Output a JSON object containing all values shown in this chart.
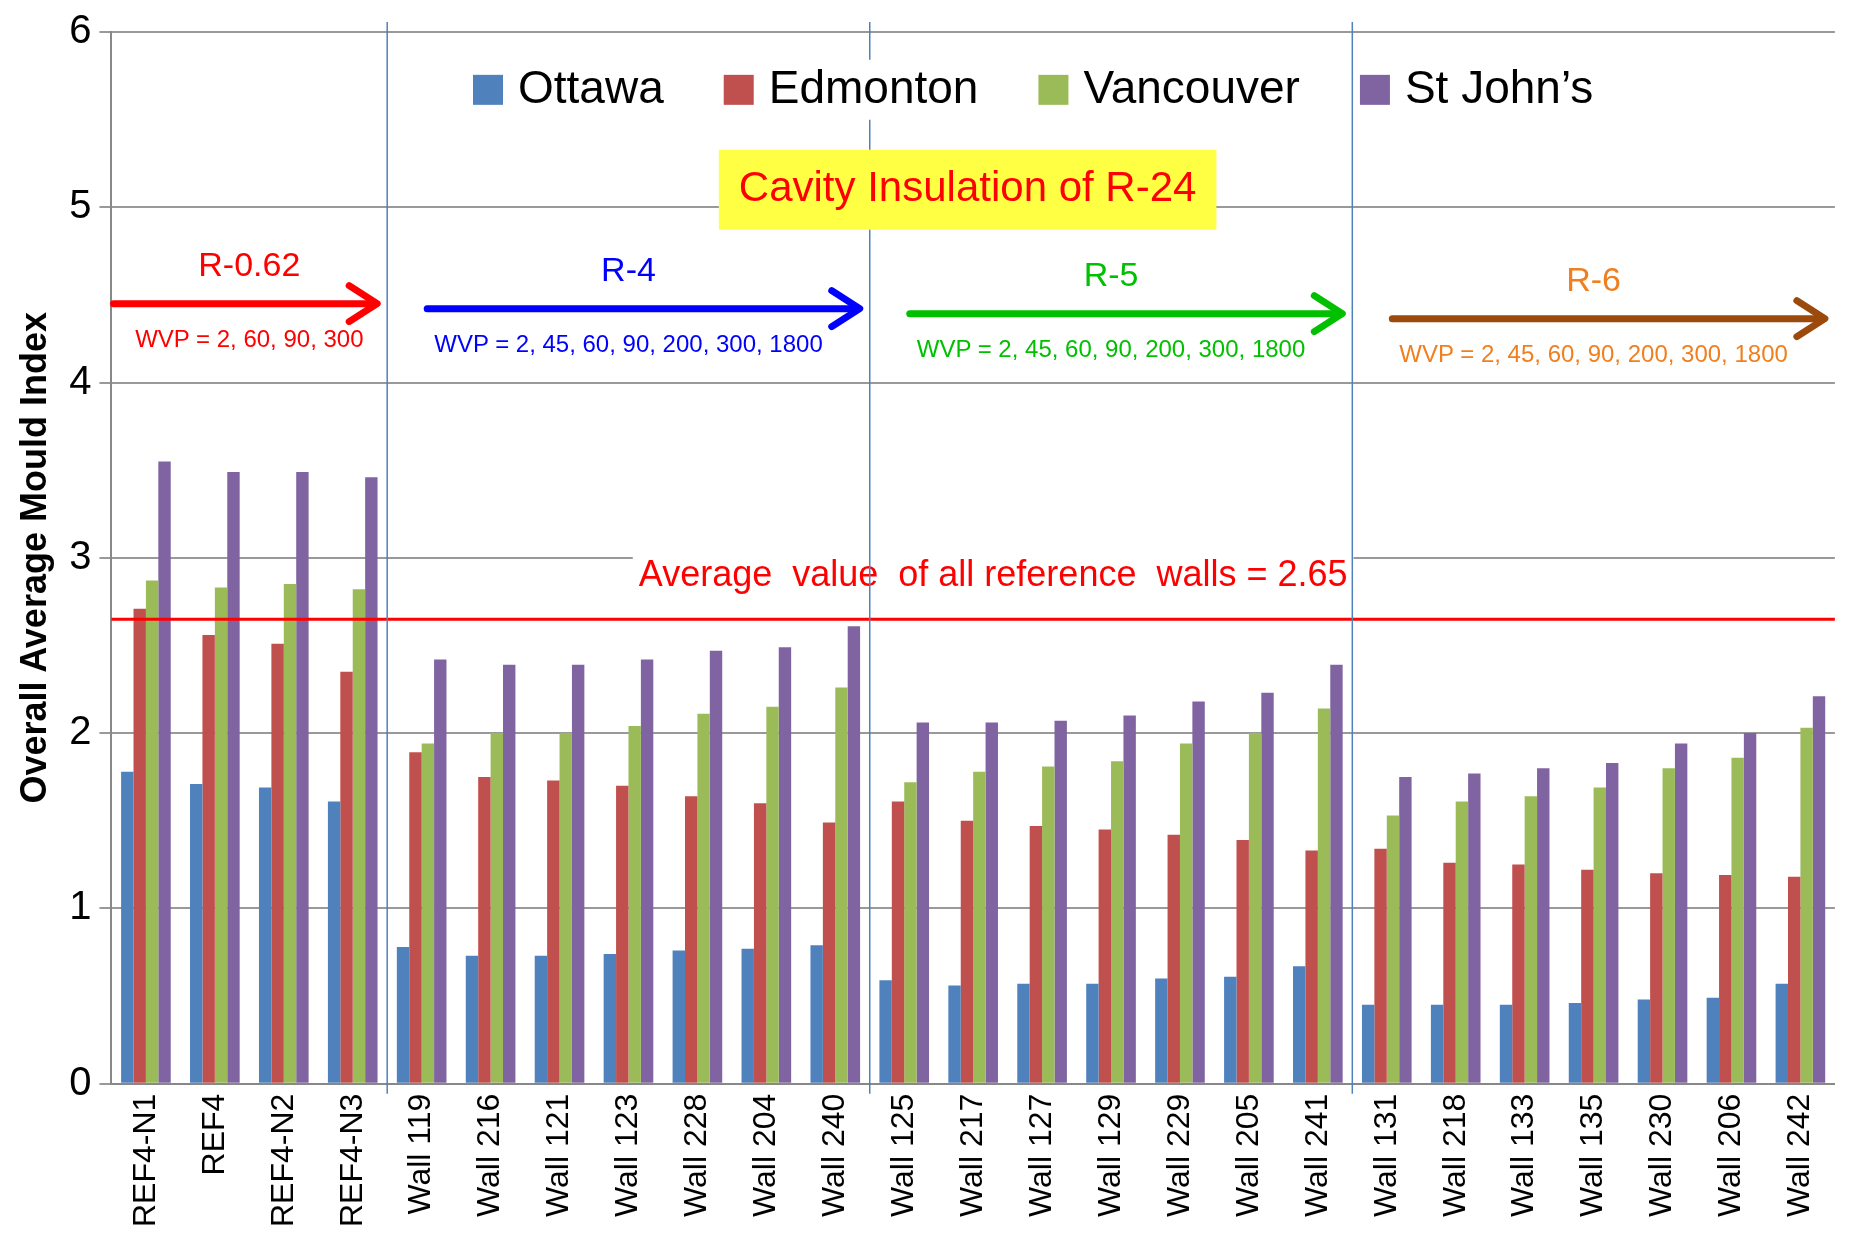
{
  "chart_data": {
    "type": "bar",
    "ylabel": "Overall Average Mould Index",
    "categories": [
      "REF4-N1",
      "REF4",
      "REF4-N2",
      "REF4-N3",
      "Wall 119",
      "Wall 216",
      "Wall 121",
      "Wall 123",
      "Wall 228",
      "Wall 204",
      "Wall 240",
      "Wall 125",
      "Wall 217",
      "Wall 127",
      "Wall 129",
      "Wall 229",
      "Wall 205",
      "Wall 241",
      "Wall 131",
      "Wall 218",
      "Wall 133",
      "Wall 135",
      "Wall 230",
      "Wall 206",
      "Wall 242"
    ],
    "series": [
      {
        "name": "Ottawa",
        "color": "#4f81bd",
        "values": [
          1.78,
          1.71,
          1.69,
          1.61,
          0.78,
          0.73,
          0.73,
          0.74,
          0.76,
          0.77,
          0.79,
          0.59,
          0.56,
          0.57,
          0.57,
          0.6,
          0.61,
          0.67,
          0.45,
          0.45,
          0.45,
          0.46,
          0.48,
          0.49,
          0.57
        ]
      },
      {
        "name": "Edmonton",
        "color": "#c0504d",
        "values": [
          2.71,
          2.56,
          2.51,
          2.35,
          1.89,
          1.75,
          1.73,
          1.7,
          1.64,
          1.6,
          1.49,
          1.61,
          1.5,
          1.47,
          1.45,
          1.42,
          1.39,
          1.33,
          1.34,
          1.26,
          1.25,
          1.22,
          1.2,
          1.19,
          1.18
        ]
      },
      {
        "name": "Vancouver",
        "color": "#9bbb59",
        "values": [
          2.87,
          2.83,
          2.85,
          2.82,
          1.94,
          2.0,
          2.0,
          2.04,
          2.11,
          2.15,
          2.26,
          1.72,
          1.78,
          1.81,
          1.84,
          1.94,
          2.0,
          2.14,
          1.53,
          1.61,
          1.64,
          1.69,
          1.8,
          1.86,
          2.03
        ]
      },
      {
        "name": "St John’s",
        "color": "#8064a2",
        "values": [
          3.55,
          3.49,
          3.49,
          3.46,
          2.42,
          2.39,
          2.39,
          2.42,
          2.47,
          2.49,
          2.61,
          2.06,
          2.06,
          2.07,
          2.1,
          2.18,
          2.23,
          2.39,
          1.75,
          1.77,
          1.8,
          1.83,
          1.94,
          2.0,
          2.21
        ]
      }
    ],
    "ylim": [
      0,
      6
    ],
    "yticks": [
      0,
      1,
      2,
      3,
      4,
      5,
      6
    ],
    "grid": "y",
    "legend": "top",
    "ref_lines": [
      {
        "axis": "y",
        "value": 2.65,
        "label": "Average  value  of all reference  walls = 2.65",
        "color": "#ff0000"
      }
    ],
    "annotations": [
      "Cavity Insulation of R-24",
      "R-0.62",
      "WVP = 2, 60, 90, 300",
      "R-4",
      "WVP = 2, 45, 60, 90, 200, 300, 1800",
      "R-5",
      "WVP = 2, 45, 60, 90, 200, 300, 1800",
      "R-6",
      "WVP = 2, 45, 60, 90, 200, 300, 1800"
    ]
  }
}
